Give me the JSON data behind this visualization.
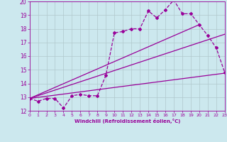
{
  "xlabel": "Windchill (Refroidissement éolien,°C)",
  "bg_color": "#cce8ee",
  "line_color": "#990099",
  "grid_color": "#b0c8cc",
  "xlim": [
    0,
    23
  ],
  "ylim": [
    12,
    20
  ],
  "yticks": [
    12,
    13,
    14,
    15,
    16,
    17,
    18,
    19,
    20
  ],
  "xticks": [
    0,
    1,
    2,
    3,
    4,
    5,
    6,
    7,
    8,
    9,
    10,
    11,
    12,
    13,
    14,
    15,
    16,
    17,
    18,
    19,
    20,
    21,
    22,
    23
  ],
  "data_x": [
    0,
    1,
    2,
    3,
    4,
    5,
    6,
    7,
    8,
    9,
    10,
    11,
    12,
    13,
    14,
    15,
    16,
    17,
    18,
    19,
    20,
    21,
    22,
    23
  ],
  "data_y": [
    12.9,
    12.7,
    12.9,
    12.9,
    12.2,
    13.1,
    13.2,
    13.1,
    13.1,
    14.6,
    17.7,
    17.8,
    18.0,
    18.0,
    19.3,
    18.8,
    19.4,
    20.1,
    19.1,
    19.1,
    18.3,
    17.5,
    16.6,
    14.8
  ],
  "line1_x": [
    0,
    23
  ],
  "line1_y": [
    12.9,
    14.75
  ],
  "line2_x": [
    0,
    23
  ],
  "line2_y": [
    12.9,
    17.6
  ],
  "line3_x": [
    0,
    20
  ],
  "line3_y": [
    12.9,
    18.3
  ]
}
